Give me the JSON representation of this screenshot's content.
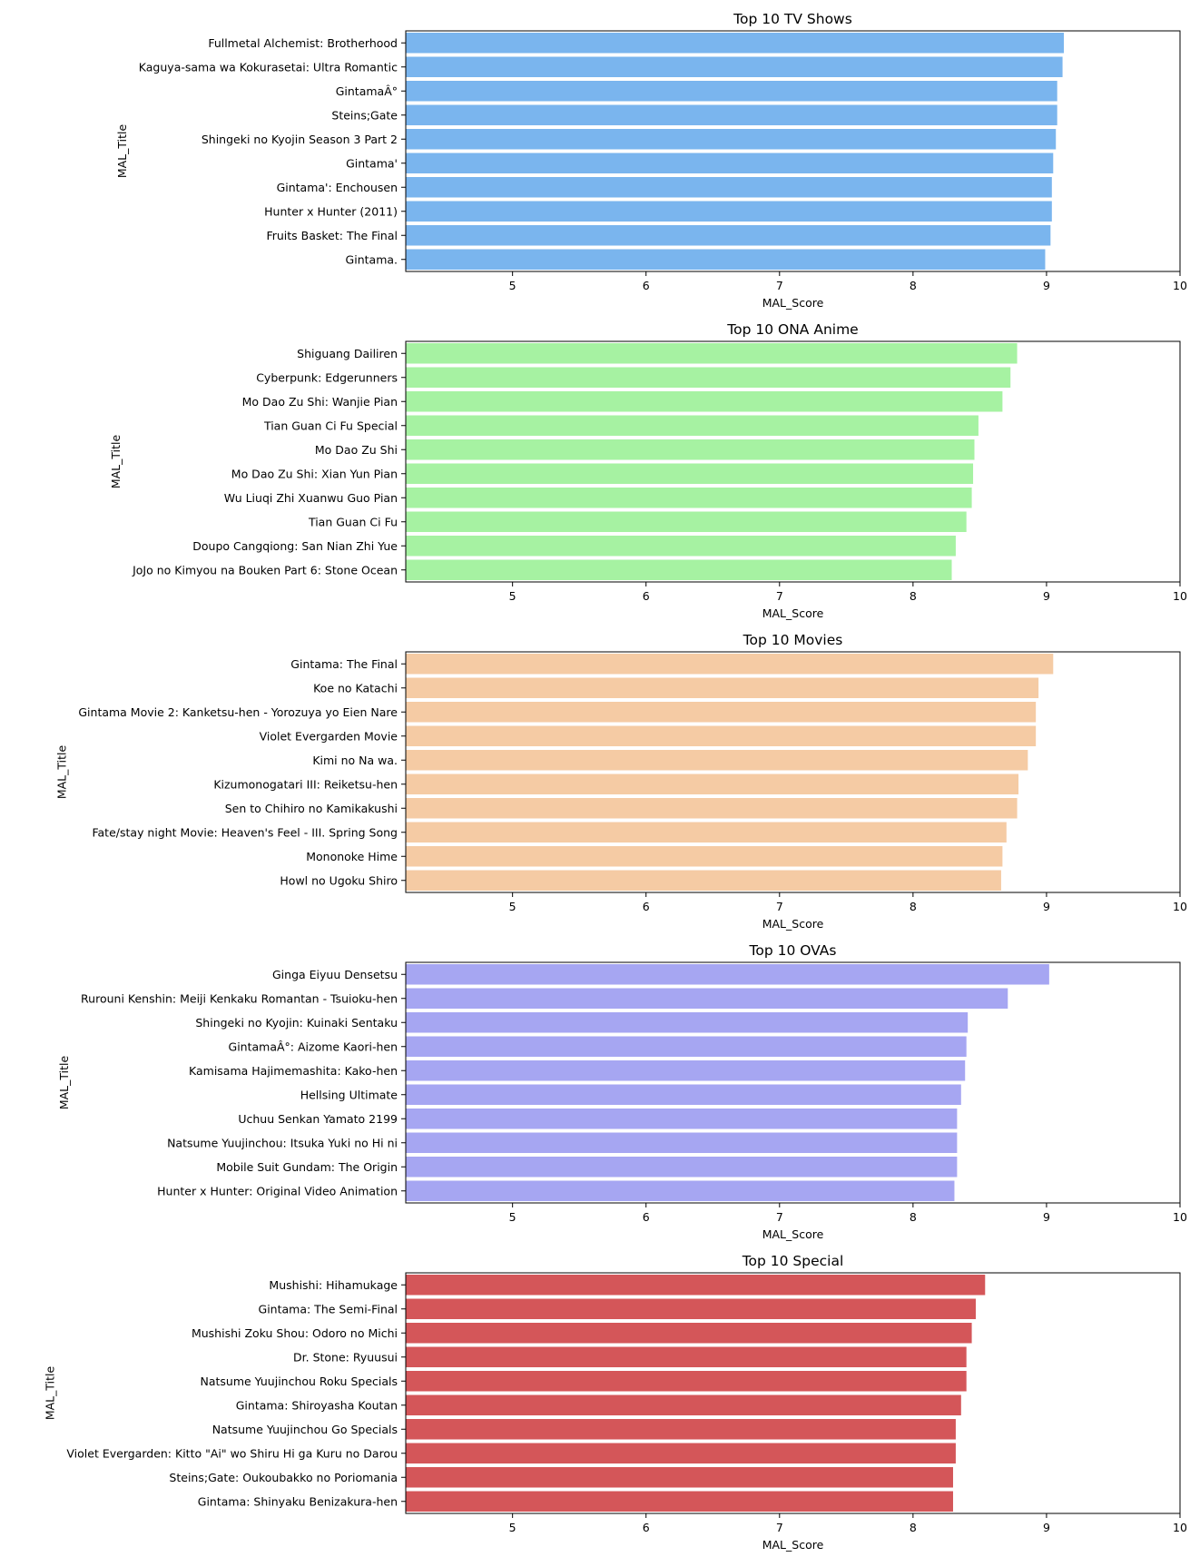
{
  "chart_data": [
    {
      "type": "bar",
      "orientation": "horizontal",
      "title": "Top 10 TV Shows",
      "xlabel": "MAL_Score",
      "ylabel": "MAL_Title",
      "xlim": [
        4.2,
        10
      ],
      "xticks": [
        5,
        6,
        7,
        8,
        9,
        10
      ],
      "color": "#7ab5ee",
      "grid": false,
      "categories": [
        "Fullmetal Alchemist: Brotherhood",
        "Kaguya-sama wa Kokurasetai: Ultra Romantic",
        "GintamaÂ°",
        "Steins;Gate",
        "Shingeki no Kyojin Season 3 Part 2",
        "Gintama'",
        "Gintama': Enchousen",
        "Hunter x Hunter (2011)",
        "Fruits Basket: The Final",
        "Gintama."
      ],
      "values": [
        9.13,
        9.12,
        9.08,
        9.08,
        9.07,
        9.05,
        9.04,
        9.04,
        9.03,
        8.99
      ]
    },
    {
      "type": "bar",
      "orientation": "horizontal",
      "title": "Top 10 ONA Anime",
      "xlabel": "MAL_Score",
      "ylabel": "MAL_Title",
      "xlim": [
        4.2,
        10
      ],
      "xticks": [
        5,
        6,
        7,
        8,
        9,
        10
      ],
      "color": "#a6f2a2",
      "grid": false,
      "categories": [
        "Shiguang Dailiren",
        "Cyberpunk: Edgerunners",
        "Mo Dao Zu Shi: Wanjie Pian",
        "Tian Guan Ci Fu Special",
        "Mo Dao Zu Shi",
        "Mo Dao Zu Shi: Xian Yun Pian",
        "Wu Liuqi Zhi Xuanwu Guo Pian",
        "Tian Guan Ci Fu",
        "Doupo Cangqiong: San Nian Zhi Yue",
        "JoJo no Kimyou na Bouken Part 6: Stone Ocean"
      ],
      "values": [
        8.78,
        8.73,
        8.67,
        8.49,
        8.46,
        8.45,
        8.44,
        8.4,
        8.32,
        8.29
      ]
    },
    {
      "type": "bar",
      "orientation": "horizontal",
      "title": "Top 10 Movies",
      "xlabel": "MAL_Score",
      "ylabel": "MAL_Title",
      "xlim": [
        4.2,
        10
      ],
      "xticks": [
        5,
        6,
        7,
        8,
        9,
        10
      ],
      "color": "#f5cba4",
      "grid": false,
      "categories": [
        "Gintama: The Final",
        "Koe no Katachi",
        "Gintama Movie 2: Kanketsu-hen - Yorozuya yo Eien Nare",
        "Violet Evergarden Movie",
        "Kimi no Na wa.",
        "Kizumonogatari III: Reiketsu-hen",
        "Sen to Chihiro no Kamikakushi",
        "Fate/stay night Movie: Heaven's Feel - III. Spring Song",
        "Mononoke Hime",
        "Howl no Ugoku Shiro"
      ],
      "values": [
        9.05,
        8.94,
        8.92,
        8.92,
        8.86,
        8.79,
        8.78,
        8.7,
        8.67,
        8.66
      ]
    },
    {
      "type": "bar",
      "orientation": "horizontal",
      "title": "Top 10 OVAs",
      "xlabel": "MAL_Score",
      "ylabel": "MAL_Title",
      "xlim": [
        4.2,
        10
      ],
      "xticks": [
        5,
        6,
        7,
        8,
        9,
        10
      ],
      "color": "#a6a6f2",
      "grid": false,
      "categories": [
        "Ginga Eiyuu Densetsu",
        "Rurouni Kenshin: Meiji Kenkaku Romantan - Tsuioku-hen",
        "Shingeki no Kyojin: Kuinaki Sentaku",
        "GintamaÂ°: Aizome Kaori-hen",
        "Kamisama Hajimemashita: Kako-hen",
        "Hellsing Ultimate",
        "Uchuu Senkan Yamato 2199",
        "Natsume Yuujinchou: Itsuka Yuki no Hi ni",
        "Mobile Suit Gundam: The Origin",
        "Hunter x Hunter: Original Video Animation"
      ],
      "values": [
        9.02,
        8.71,
        8.41,
        8.4,
        8.39,
        8.36,
        8.33,
        8.33,
        8.33,
        8.31
      ]
    },
    {
      "type": "bar",
      "orientation": "horizontal",
      "title": "Top 10 Special",
      "xlabel": "MAL_Score",
      "ylabel": "MAL_Title",
      "xlim": [
        4.2,
        10
      ],
      "xticks": [
        5,
        6,
        7,
        8,
        9,
        10
      ],
      "color": "#d45659",
      "grid": false,
      "categories": [
        "Mushishi: Hihamukage",
        "Gintama: The Semi-Final",
        "Mushishi Zoku Shou: Odoro no Michi",
        "Dr. Stone: Ryuusui",
        "Natsume Yuujinchou Roku Specials",
        "Gintama: Shiroyasha Koutan",
        "Natsume Yuujinchou Go Specials",
        "Violet Evergarden: Kitto \"Ai\" wo Shiru Hi ga Kuru no Darou",
        "Steins;Gate: Oukoubakko no Poriomania",
        "Gintama: Shinyaku Benizakura-hen"
      ],
      "values": [
        8.54,
        8.47,
        8.44,
        8.4,
        8.4,
        8.36,
        8.32,
        8.32,
        8.3,
        8.3
      ]
    }
  ]
}
